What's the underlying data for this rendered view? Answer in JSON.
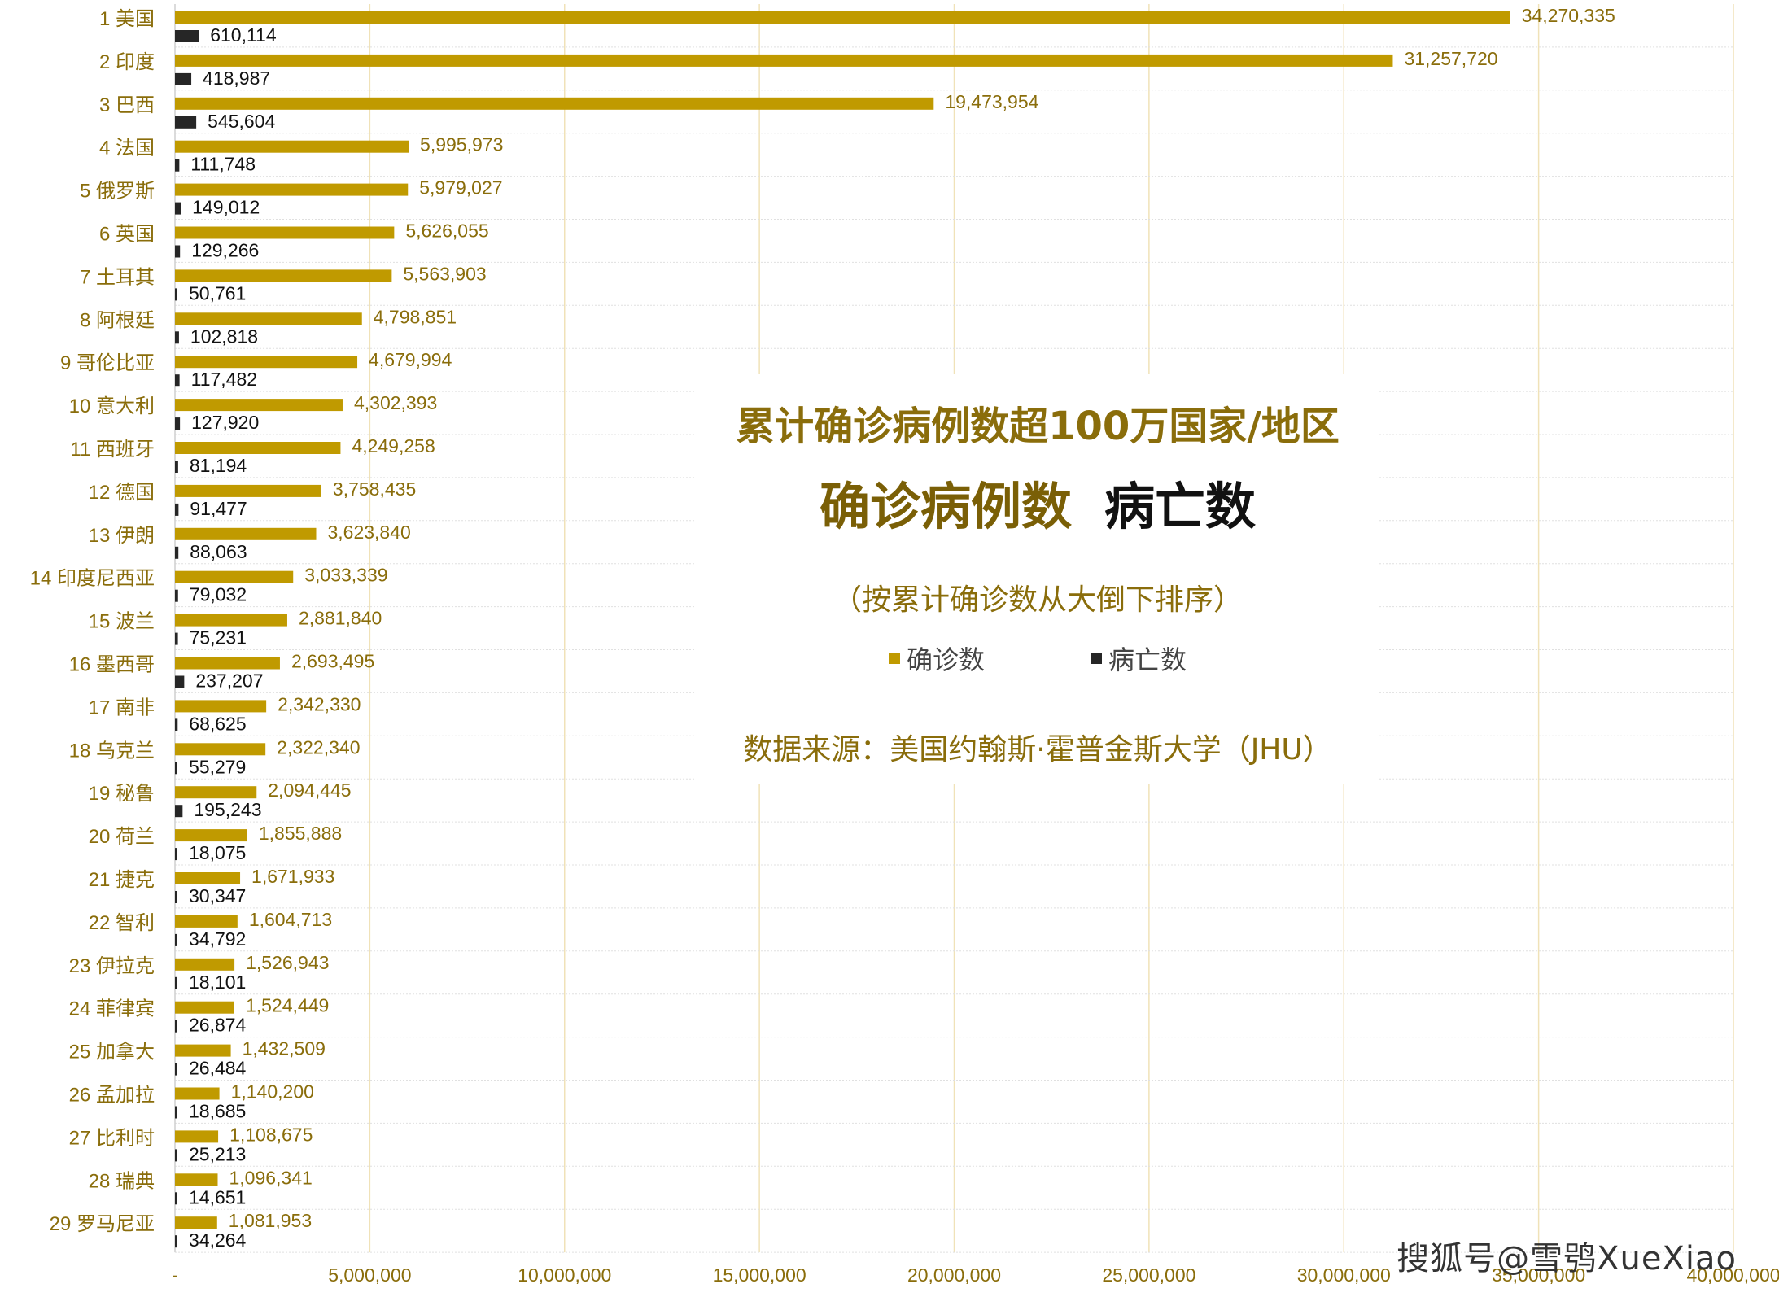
{
  "chart_data": {
    "type": "bar",
    "orientation": "horizontal",
    "title": "累计确诊病例数超100万国家/地区",
    "subtitle_confirmed": "确诊病例数",
    "subtitle_deaths": "病亡数",
    "note": "（按累计确诊数从大倒下排序）",
    "source": "数据来源：美国约翰斯·霍普金斯大学（JHU）",
    "categories": [
      "1 美国",
      "2 印度",
      "3 巴西",
      "4 法国",
      "5 俄罗斯",
      "6 英国",
      "7 土耳其",
      "8 阿根廷",
      "9 哥伦比亚",
      "10 意大利",
      "11 西班牙",
      "12 德国",
      "13 伊朗",
      "14 印度尼西亚",
      "15 波兰",
      "16 墨西哥",
      "17 南非",
      "18 乌克兰",
      "19 秘鲁",
      "20 荷兰",
      "21 捷克",
      "22 智利",
      "23 伊拉克",
      "24 菲律宾",
      "25 加拿大",
      "26 孟加拉",
      "27 比利时",
      "28 瑞典",
      "29 罗马尼亚"
    ],
    "series": [
      {
        "name": "确诊数",
        "color": "#c09a00",
        "values": [
          34270335,
          31257720,
          19473954,
          5995973,
          5979027,
          5626055,
          5563903,
          4798851,
          4679994,
          4302393,
          4249258,
          3758435,
          3623840,
          3033339,
          2881840,
          2693495,
          2342330,
          2322340,
          2094445,
          1855888,
          1671933,
          1604713,
          1526943,
          1524449,
          1432509,
          1140200,
          1108675,
          1096341,
          1081953
        ],
        "labels": [
          "34,270,335",
          "31,257,720",
          "19,473,954",
          "5,995,973",
          "5,979,027",
          "5,626,055",
          "5,563,903",
          "4,798,851",
          "4,679,994",
          "4,302,393",
          "4,249,258",
          "3,758,435",
          "3,623,840",
          "3,033,339",
          "2,881,840",
          "2,693,495",
          "2,342,330",
          "2,322,340",
          "2,094,445",
          "1,855,888",
          "1,671,933",
          "1,604,713",
          "1,526,943",
          "1,524,449",
          "1,432,509",
          "1,140,200",
          "1,108,675",
          "1,096,341",
          "1,081,953"
        ]
      },
      {
        "name": "病亡数",
        "color": "#262626",
        "values": [
          610114,
          418987,
          545604,
          111748,
          149012,
          129266,
          50761,
          102818,
          117482,
          127920,
          81194,
          91477,
          88063,
          79032,
          75231,
          237207,
          68625,
          55279,
          195243,
          18075,
          30347,
          34792,
          18101,
          26874,
          26484,
          18685,
          25213,
          14651,
          34264
        ],
        "labels": [
          "610,114",
          "418,987",
          "545,604",
          "111,748",
          "149,012",
          "129,266",
          "50,761",
          "102,818",
          "117,482",
          "127,920",
          "81,194",
          "91,477",
          "88,063",
          "79,032",
          "75,231",
          "237,207",
          "68,625",
          "55,279",
          "195,243",
          "18,075",
          "30,347",
          "34,792",
          "18,101",
          "26,874",
          "26,484",
          "18,685",
          "25,213",
          "14,651",
          "34,264"
        ]
      }
    ],
    "xlim": [
      0,
      40000000
    ],
    "xticks": [
      0,
      5000000,
      10000000,
      15000000,
      20000000,
      25000000,
      30000000,
      35000000,
      40000000
    ],
    "xtick_labels": [
      "-",
      "5,000,000",
      "10,000,000",
      "15,000,000",
      "20,000,000",
      "25,000,000",
      "30,000,000",
      "35,000,000",
      "40,000,000"
    ],
    "grid": true,
    "legend_position": "center"
  },
  "watermark": "搜狐号@雪鸮XueXiao"
}
